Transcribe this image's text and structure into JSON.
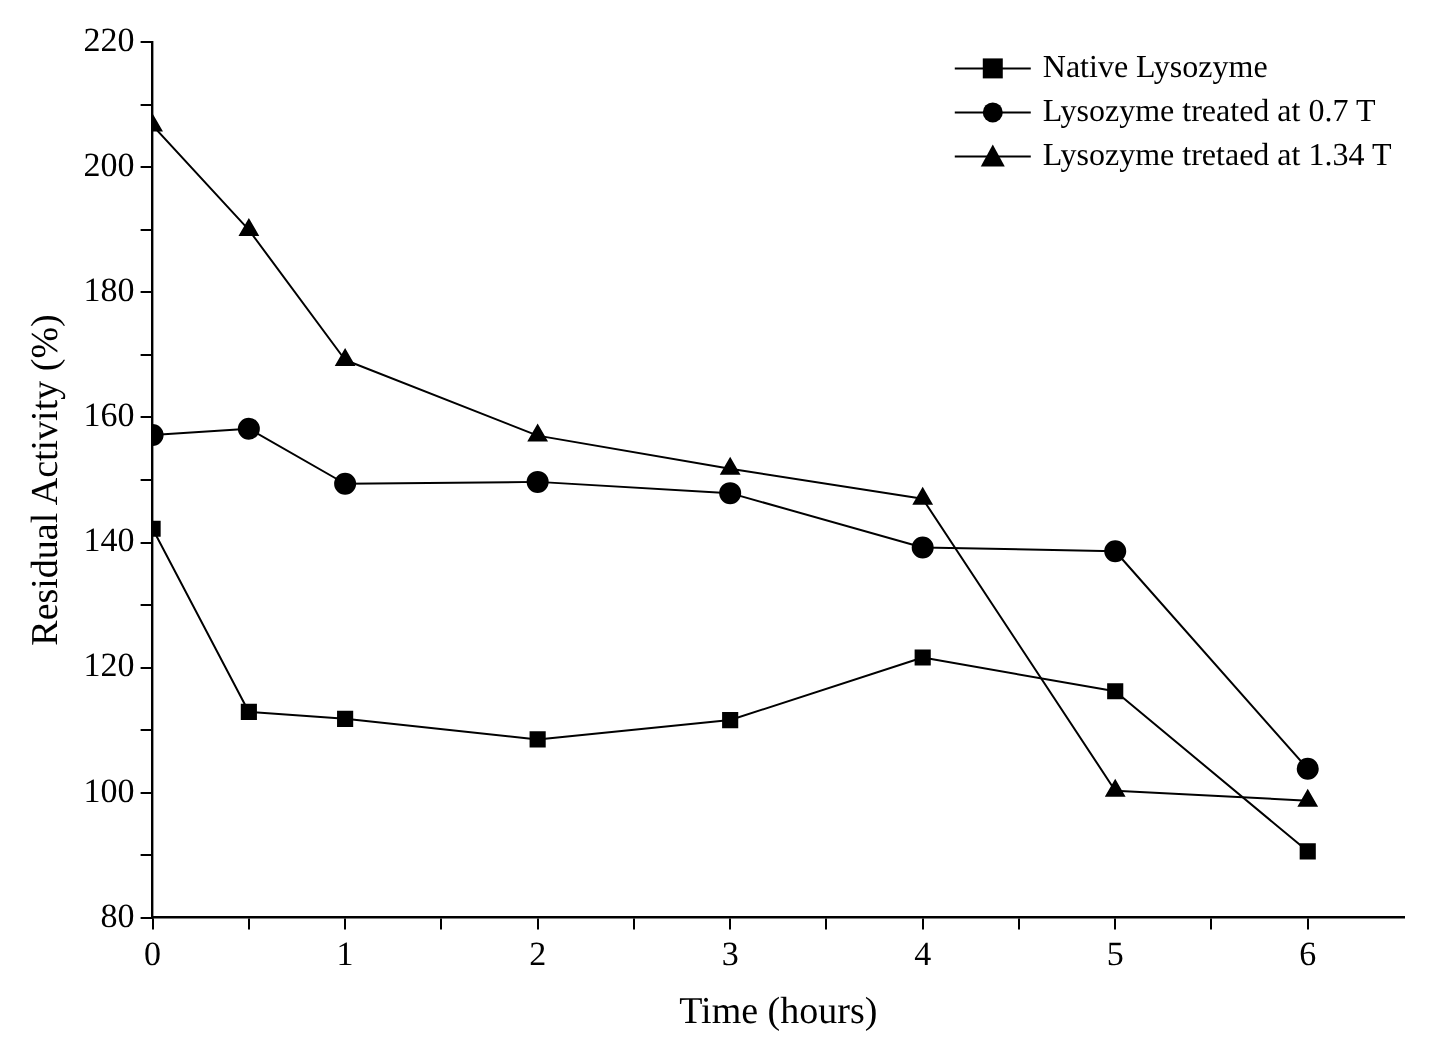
{
  "chart_data": {
    "type": "line",
    "xlabel": "Time (hours)",
    "ylabel": "Residual Activity (%)",
    "x": [
      0,
      0.5,
      1,
      2,
      3,
      4,
      5,
      6
    ],
    "series": [
      {
        "name": "Native Lysozyme",
        "color": "#000000",
        "marker": "square",
        "values": [
          142.2,
          112.9,
          111.8,
          108.5,
          111.6,
          121.6,
          116.2,
          90.6
        ]
      },
      {
        "name": "Lysozyme treated at 0.7 T",
        "color": "#000000",
        "marker": "circle",
        "values": [
          157.2,
          158.2,
          149.4,
          149.7,
          147.9,
          139.2,
          138.6,
          103.8
        ]
      },
      {
        "name": "Lysozyme tretaed at 1.34 T",
        "color": "#000000",
        "marker": "triangle",
        "values": [
          206.7,
          190,
          169.2,
          157.1,
          151.8,
          147,
          100.3,
          98.7
        ]
      }
    ],
    "xlim": [
      0,
      6.5
    ],
    "xticks": [
      0,
      {
        "value": 0.5,
        "label": null
      },
      1,
      {
        "value": 1.5,
        "label": null
      },
      2,
      {
        "value": 2.5,
        "label": null
      },
      3,
      {
        "value": 3.5,
        "label": null
      },
      4,
      {
        "value": 4.5,
        "label": null
      },
      5,
      {
        "value": 5.5,
        "label": null
      },
      6
    ],
    "ylim": [
      80,
      220
    ],
    "yticks": [
      80,
      {
        "value": 90,
        "label": null
      },
      100,
      {
        "value": 110,
        "label": null
      },
      120,
      {
        "value": 130,
        "label": null
      },
      140,
      {
        "value": 150,
        "label": null
      },
      160,
      {
        "value": 170,
        "label": null
      },
      180,
      {
        "value": 190,
        "label": null
      },
      200,
      {
        "value": 210,
        "label": null
      },
      220
    ],
    "grid": false,
    "legend": "top right",
    "line_style": "solid"
  }
}
